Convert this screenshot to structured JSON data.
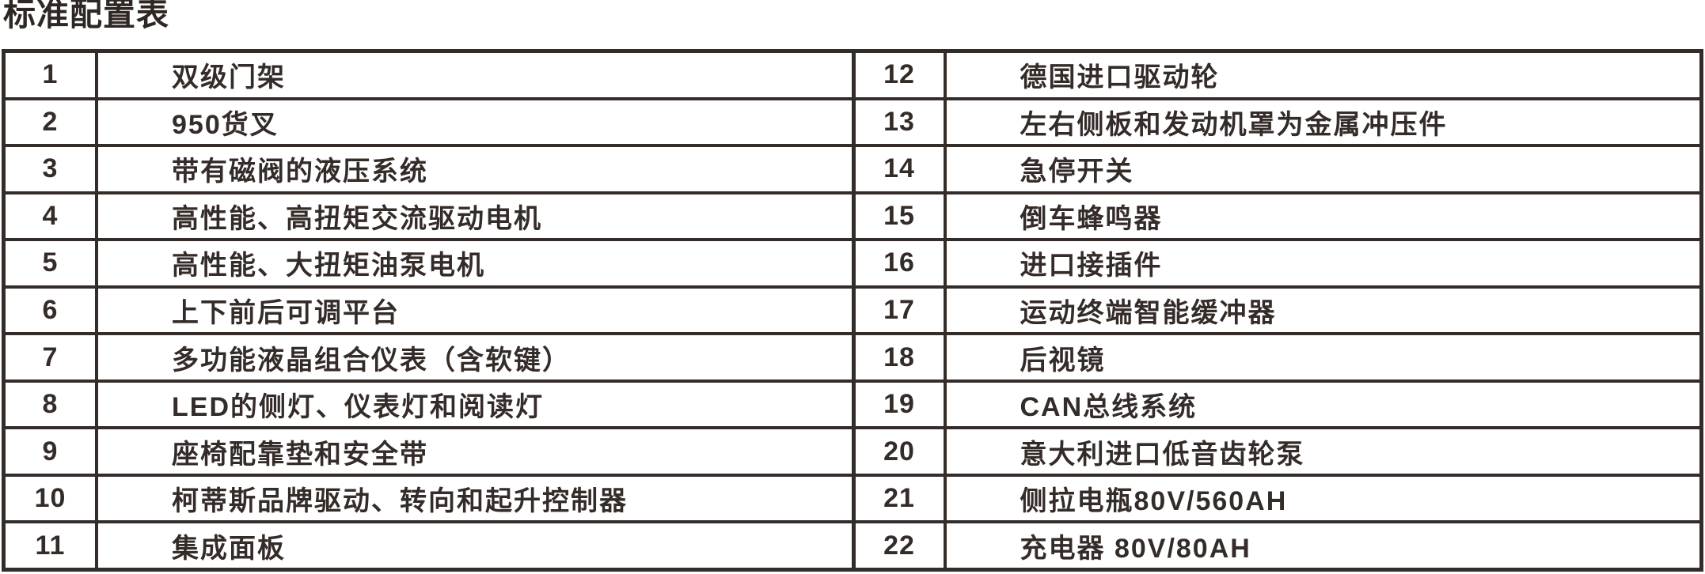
{
  "title": "标准配置表",
  "colors": {
    "ink": "#342c29",
    "background": "#ffffff"
  },
  "table": {
    "left": [
      {
        "no": "1",
        "text": "双级门架"
      },
      {
        "no": "2",
        "text": "950货叉"
      },
      {
        "no": "3",
        "text": "带有磁阀的液压系统"
      },
      {
        "no": "4",
        "text": "高性能、高扭矩交流驱动电机"
      },
      {
        "no": "5",
        "text": "高性能、大扭矩油泵电机"
      },
      {
        "no": "6",
        "text": "上下前后可调平台"
      },
      {
        "no": "7",
        "text": "多功能液晶组合仪表（含软键）"
      },
      {
        "no": "8",
        "text": "LED的侧灯、仪表灯和阅读灯"
      },
      {
        "no": "9",
        "text": "座椅配靠垫和安全带"
      },
      {
        "no": "10",
        "text": "柯蒂斯品牌驱动、转向和起升控制器"
      },
      {
        "no": "11",
        "text": "集成面板"
      }
    ],
    "right": [
      {
        "no": "12",
        "text": "德国进口驱动轮"
      },
      {
        "no": "13",
        "text": "左右侧板和发动机罩为金属冲压件"
      },
      {
        "no": "14",
        "text": "急停开关"
      },
      {
        "no": "15",
        "text": "倒车蜂鸣器"
      },
      {
        "no": "16",
        "text": "进口接插件"
      },
      {
        "no": "17",
        "text": "运动终端智能缓冲器"
      },
      {
        "no": "18",
        "text": "后视镜"
      },
      {
        "no": "19",
        "text": "CAN总线系统"
      },
      {
        "no": "20",
        "text": "意大利进口低音齿轮泵"
      },
      {
        "no": "21",
        "text": "侧拉电瓶80V/560AH"
      },
      {
        "no": "22",
        "text": "充电器 80V/80AH"
      }
    ]
  }
}
